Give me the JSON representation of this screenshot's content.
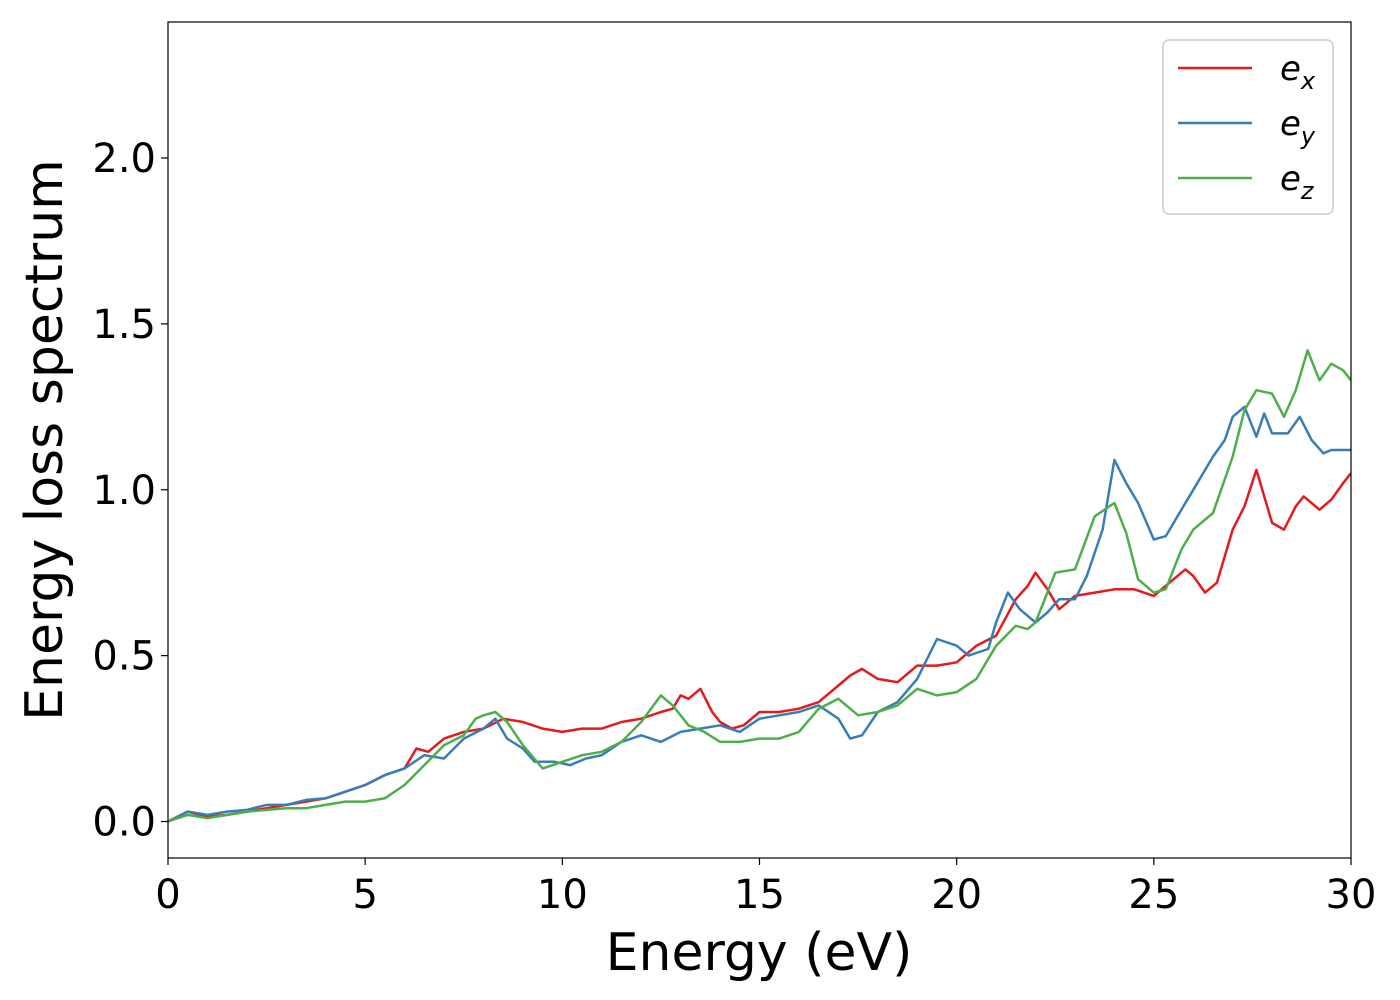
{
  "chart_data": {
    "type": "line",
    "title": "",
    "xlabel": "Energy (eV)",
    "ylabel": "Energy loss spectrum",
    "xlim": [
      0,
      30
    ],
    "ylim": [
      -0.11,
      2.41
    ],
    "xticks": [
      0,
      5,
      10,
      15,
      20,
      25,
      30
    ],
    "xtick_labels": [
      "0",
      "5",
      "10",
      "15",
      "20",
      "25",
      "30"
    ],
    "yticks": [
      0.0,
      0.5,
      1.0,
      1.5,
      2.0
    ],
    "ytick_labels": [
      "0.0",
      "0.5",
      "1.0",
      "1.5",
      "2.0"
    ],
    "grid": false,
    "legend_position": "top-right",
    "series": [
      {
        "name": "e",
        "subscript": "x",
        "color": "#e41a1c",
        "points": [
          [
            0,
            0.0
          ],
          [
            0.5,
            0.03
          ],
          [
            1.0,
            0.015
          ],
          [
            1.5,
            0.02
          ],
          [
            2.0,
            0.03
          ],
          [
            2.5,
            0.04
          ],
          [
            3.0,
            0.05
          ],
          [
            3.5,
            0.06
          ],
          [
            4.0,
            0.07
          ],
          [
            4.5,
            0.09
          ],
          [
            5.0,
            0.11
          ],
          [
            5.5,
            0.14
          ],
          [
            6.0,
            0.16
          ],
          [
            6.3,
            0.22
          ],
          [
            6.6,
            0.21
          ],
          [
            7.0,
            0.25
          ],
          [
            7.5,
            0.27
          ],
          [
            8.0,
            0.28
          ],
          [
            8.5,
            0.31
          ],
          [
            9.0,
            0.3
          ],
          [
            9.5,
            0.28
          ],
          [
            10.0,
            0.27
          ],
          [
            10.5,
            0.28
          ],
          [
            11.0,
            0.28
          ],
          [
            11.5,
            0.3
          ],
          [
            12.0,
            0.31
          ],
          [
            12.5,
            0.33
          ],
          [
            12.8,
            0.34
          ],
          [
            13.0,
            0.38
          ],
          [
            13.2,
            0.37
          ],
          [
            13.5,
            0.4
          ],
          [
            13.8,
            0.33
          ],
          [
            14.0,
            0.3
          ],
          [
            14.3,
            0.28
          ],
          [
            14.6,
            0.29
          ],
          [
            15.0,
            0.33
          ],
          [
            15.5,
            0.33
          ],
          [
            16.0,
            0.34
          ],
          [
            16.5,
            0.36
          ],
          [
            17.0,
            0.41
          ],
          [
            17.3,
            0.44
          ],
          [
            17.6,
            0.46
          ],
          [
            18.0,
            0.43
          ],
          [
            18.5,
            0.42
          ],
          [
            19.0,
            0.47
          ],
          [
            19.5,
            0.47
          ],
          [
            20.0,
            0.48
          ],
          [
            20.5,
            0.53
          ],
          [
            21.0,
            0.56
          ],
          [
            21.5,
            0.67
          ],
          [
            21.8,
            0.71
          ],
          [
            22.0,
            0.75
          ],
          [
            22.3,
            0.7
          ],
          [
            22.6,
            0.64
          ],
          [
            23.0,
            0.68
          ],
          [
            23.5,
            0.69
          ],
          [
            24.0,
            0.7
          ],
          [
            24.5,
            0.7
          ],
          [
            25.0,
            0.68
          ],
          [
            25.5,
            0.73
          ],
          [
            25.8,
            0.76
          ],
          [
            26.0,
            0.74
          ],
          [
            26.3,
            0.69
          ],
          [
            26.6,
            0.72
          ],
          [
            27.0,
            0.88
          ],
          [
            27.3,
            0.95
          ],
          [
            27.6,
            1.06
          ],
          [
            28.0,
            0.9
          ],
          [
            28.3,
            0.88
          ],
          [
            28.6,
            0.95
          ],
          [
            28.8,
            0.98
          ],
          [
            29.2,
            0.94
          ],
          [
            29.5,
            0.97
          ],
          [
            29.8,
            1.02
          ],
          [
            30.0,
            1.05
          ]
        ]
      },
      {
        "name": "e",
        "subscript": "y",
        "color": "#377eb8",
        "points": [
          [
            0,
            0.0
          ],
          [
            0.5,
            0.03
          ],
          [
            1.0,
            0.02
          ],
          [
            1.5,
            0.03
          ],
          [
            2.0,
            0.035
          ],
          [
            2.5,
            0.05
          ],
          [
            3.0,
            0.05
          ],
          [
            3.5,
            0.065
          ],
          [
            4.0,
            0.07
          ],
          [
            4.5,
            0.09
          ],
          [
            5.0,
            0.11
          ],
          [
            5.5,
            0.14
          ],
          [
            6.0,
            0.16
          ],
          [
            6.5,
            0.2
          ],
          [
            7.0,
            0.19
          ],
          [
            7.5,
            0.25
          ],
          [
            8.0,
            0.28
          ],
          [
            8.3,
            0.31
          ],
          [
            8.6,
            0.25
          ],
          [
            9.0,
            0.22
          ],
          [
            9.3,
            0.18
          ],
          [
            9.8,
            0.18
          ],
          [
            10.2,
            0.17
          ],
          [
            10.6,
            0.19
          ],
          [
            11.0,
            0.2
          ],
          [
            11.5,
            0.24
          ],
          [
            12.0,
            0.26
          ],
          [
            12.5,
            0.24
          ],
          [
            13.0,
            0.27
          ],
          [
            13.5,
            0.28
          ],
          [
            14.0,
            0.29
          ],
          [
            14.5,
            0.27
          ],
          [
            15.0,
            0.31
          ],
          [
            15.5,
            0.32
          ],
          [
            16.0,
            0.33
          ],
          [
            16.5,
            0.35
          ],
          [
            17.0,
            0.31
          ],
          [
            17.3,
            0.25
          ],
          [
            17.6,
            0.26
          ],
          [
            18.0,
            0.33
          ],
          [
            18.5,
            0.36
          ],
          [
            19.0,
            0.43
          ],
          [
            19.5,
            0.55
          ],
          [
            20.0,
            0.53
          ],
          [
            20.3,
            0.5
          ],
          [
            20.8,
            0.52
          ],
          [
            21.0,
            0.6
          ],
          [
            21.3,
            0.69
          ],
          [
            21.6,
            0.64
          ],
          [
            22.0,
            0.6
          ],
          [
            22.3,
            0.63
          ],
          [
            22.6,
            0.67
          ],
          [
            23.0,
            0.67
          ],
          [
            23.3,
            0.74
          ],
          [
            23.7,
            0.88
          ],
          [
            24.0,
            1.09
          ],
          [
            24.3,
            1.02
          ],
          [
            24.6,
            0.96
          ],
          [
            25.0,
            0.85
          ],
          [
            25.3,
            0.86
          ],
          [
            25.7,
            0.94
          ],
          [
            26.0,
            1.0
          ],
          [
            26.5,
            1.1
          ],
          [
            26.8,
            1.15
          ],
          [
            27.0,
            1.22
          ],
          [
            27.3,
            1.25
          ],
          [
            27.6,
            1.16
          ],
          [
            27.8,
            1.23
          ],
          [
            28.0,
            1.17
          ],
          [
            28.4,
            1.17
          ],
          [
            28.7,
            1.22
          ],
          [
            29.0,
            1.15
          ],
          [
            29.3,
            1.11
          ],
          [
            29.5,
            1.12
          ],
          [
            30.0,
            1.12
          ]
        ]
      },
      {
        "name": "e",
        "subscript": "z",
        "color": "#4daf4a",
        "points": [
          [
            0,
            0.0
          ],
          [
            0.5,
            0.02
          ],
          [
            1.0,
            0.01
          ],
          [
            1.5,
            0.02
          ],
          [
            2.0,
            0.03
          ],
          [
            2.5,
            0.035
          ],
          [
            3.0,
            0.04
          ],
          [
            3.5,
            0.04
          ],
          [
            4.0,
            0.05
          ],
          [
            4.5,
            0.06
          ],
          [
            5.0,
            0.06
          ],
          [
            5.5,
            0.07
          ],
          [
            6.0,
            0.11
          ],
          [
            6.5,
            0.17
          ],
          [
            7.0,
            0.23
          ],
          [
            7.5,
            0.26
          ],
          [
            7.8,
            0.31
          ],
          [
            8.0,
            0.32
          ],
          [
            8.3,
            0.33
          ],
          [
            8.6,
            0.3
          ],
          [
            9.0,
            0.23
          ],
          [
            9.5,
            0.16
          ],
          [
            10.0,
            0.18
          ],
          [
            10.5,
            0.2
          ],
          [
            11.0,
            0.21
          ],
          [
            11.5,
            0.24
          ],
          [
            12.0,
            0.3
          ],
          [
            12.5,
            0.38
          ],
          [
            12.8,
            0.35
          ],
          [
            13.2,
            0.29
          ],
          [
            13.6,
            0.27
          ],
          [
            14.0,
            0.24
          ],
          [
            14.5,
            0.24
          ],
          [
            15.0,
            0.25
          ],
          [
            15.5,
            0.25
          ],
          [
            16.0,
            0.27
          ],
          [
            16.5,
            0.34
          ],
          [
            17.0,
            0.37
          ],
          [
            17.5,
            0.32
          ],
          [
            18.0,
            0.33
          ],
          [
            18.5,
            0.35
          ],
          [
            19.0,
            0.4
          ],
          [
            19.5,
            0.38
          ],
          [
            20.0,
            0.39
          ],
          [
            20.5,
            0.43
          ],
          [
            21.0,
            0.53
          ],
          [
            21.5,
            0.59
          ],
          [
            21.8,
            0.58
          ],
          [
            22.0,
            0.6
          ],
          [
            22.5,
            0.75
          ],
          [
            23.0,
            0.76
          ],
          [
            23.5,
            0.92
          ],
          [
            24.0,
            0.96
          ],
          [
            24.3,
            0.87
          ],
          [
            24.6,
            0.73
          ],
          [
            25.0,
            0.69
          ],
          [
            25.3,
            0.7
          ],
          [
            25.7,
            0.82
          ],
          [
            26.0,
            0.88
          ],
          [
            26.5,
            0.93
          ],
          [
            27.0,
            1.1
          ],
          [
            27.3,
            1.24
          ],
          [
            27.6,
            1.3
          ],
          [
            28.0,
            1.29
          ],
          [
            28.3,
            1.22
          ],
          [
            28.6,
            1.3
          ],
          [
            28.9,
            1.42
          ],
          [
            29.2,
            1.33
          ],
          [
            29.5,
            1.38
          ],
          [
            29.8,
            1.36
          ],
          [
            30.0,
            1.33
          ]
        ]
      }
    ]
  }
}
